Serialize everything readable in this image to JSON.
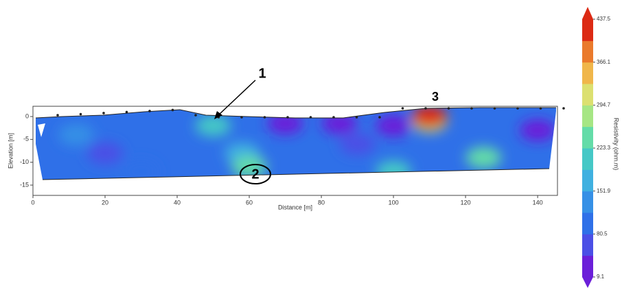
{
  "chart_data": {
    "type": "contour",
    "x_label": "Distance [m]",
    "y_label": "Elevation [m]",
    "xlim": [
      0,
      145.5
    ],
    "ylim": [
      -17.25,
      2.25
    ],
    "xticks": [
      0,
      20,
      40,
      60,
      80,
      100,
      120,
      140
    ],
    "yticks": [
      0,
      -5,
      -10,
      -15
    ],
    "colorbar_label": "Resistivity (ohm.m)",
    "clim": [
      9.1,
      437.5
    ],
    "cticks": [
      9.1,
      80.5,
      151.9,
      223.3,
      294.7,
      366.1,
      437.5
    ],
    "colormap": [
      "#6b1fd9",
      "#4b4fe6",
      "#2f70e8",
      "#3690e6",
      "#3fb0e0",
      "#45c8c6",
      "#64dca8",
      "#a6e684",
      "#dce070",
      "#f0b64a",
      "#ea7a2c",
      "#dc2a14"
    ],
    "points": [
      {
        "x": 20,
        "y": -8,
        "value": 70
      },
      {
        "x": 90,
        "y": -6,
        "value": 60
      },
      {
        "x": 70,
        "y": -1.5,
        "value": 20
      },
      {
        "x": 85,
        "y": -1.5,
        "value": 15
      },
      {
        "x": 100,
        "y": -2,
        "value": 25
      },
      {
        "x": 140,
        "y": -3,
        "value": 30
      },
      {
        "x": 12,
        "y": -4,
        "value": 150
      },
      {
        "x": 30,
        "y": -12,
        "value": 110
      },
      {
        "x": 50,
        "y": -2,
        "value": 210
      },
      {
        "x": 58,
        "y": -8,
        "value": 170
      },
      {
        "x": 60,
        "y": -11,
        "value": 250
      },
      {
        "x": 100,
        "y": -12,
        "value": 200
      },
      {
        "x": 125,
        "y": -9,
        "value": 240
      },
      {
        "x": 110,
        "y": -1,
        "value": 300
      },
      {
        "x": 110,
        "y": 0,
        "value": 420
      }
    ],
    "annotations": [
      "1",
      "2",
      "3"
    ]
  }
}
